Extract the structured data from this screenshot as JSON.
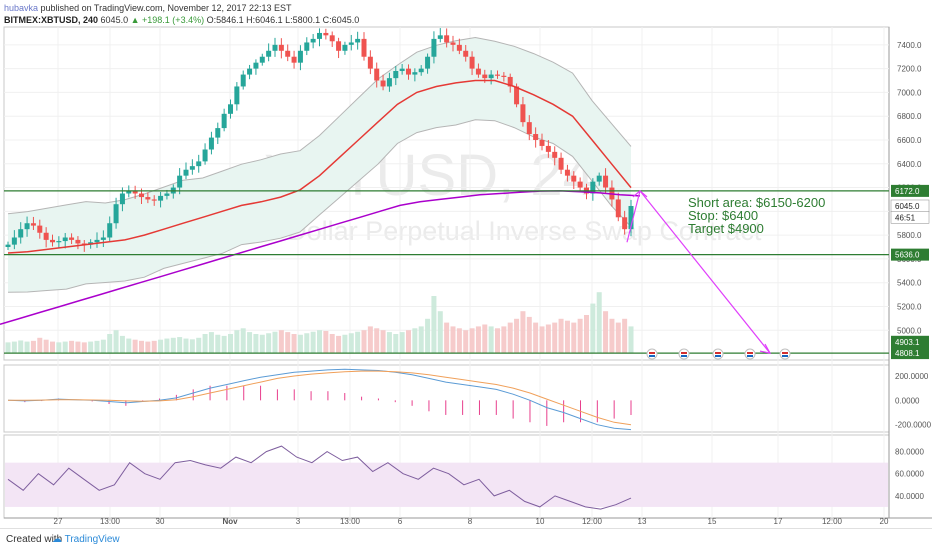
{
  "header": {
    "username": "hubavka",
    "published_text": "published on TradingView.com, November 12, 2017 22:13 EST",
    "symbol": "BITMEX:XBTUSD, 240",
    "last": "6045.0",
    "change": "+198.1 (+3.4%)",
    "ohlc": "O:5846.1 H:6046.1 L:5800.1 C:6045.0"
  },
  "watermark": {
    "symbol": "XBTUSD, 240",
    "description": "Bitcoin / US Dollar Perpetual Inverse Swap Contract"
  },
  "annotation": {
    "line1": "Short area: $6150-6200",
    "line2": "Stop: $6400",
    "line3": "Target $4900"
  },
  "footer": {
    "created_with": "Created with",
    "logo_text": "TradingView"
  },
  "colors": {
    "up": "#26a69a",
    "down": "#ef5350",
    "ema_short": "#e53935",
    "ema_long": "#aa00cc",
    "annotation": "#2e7d32",
    "hline": "#2e7d32",
    "arrow": "#e040fb"
  },
  "chart_data": [
    {
      "type": "candlestick",
      "title": "XBTUSD, 240",
      "ylim": [
        4750,
        7550
      ],
      "y_ticks": [
        5000,
        5200,
        5400,
        5600,
        5800,
        6000,
        6200,
        6400,
        6600,
        6800,
        7000,
        7200,
        7400
      ],
      "y_tick_labels": [
        "5000.0",
        "5200.0",
        "5400.0",
        "5600.0",
        "5800.0",
        "6000.0",
        "6200.0",
        "6400.0",
        "6600.0",
        "6800.0",
        "7000.0",
        "7200.0",
        "7400.0"
      ],
      "x_tick_labels": [
        "27",
        "13:00",
        "30",
        "Nov",
        "3",
        "13:00",
        "6",
        "8",
        "10",
        "12:00",
        "13",
        "15",
        "17",
        "12:00",
        "20"
      ],
      "close_path": [
        5720,
        5780,
        5850,
        5900,
        5880,
        5820,
        5760,
        5740,
        5750,
        5780,
        5760,
        5730,
        5720,
        5740,
        5760,
        5780,
        5900,
        6060,
        6150,
        6170,
        6150,
        6120,
        6100,
        6090,
        6130,
        6150,
        6200,
        6300,
        6350,
        6380,
        6420,
        6520,
        6620,
        6700,
        6820,
        6900,
        7050,
        7150,
        7200,
        7250,
        7300,
        7350,
        7400,
        7350,
        7300,
        7250,
        7350,
        7420,
        7450,
        7500,
        7480,
        7430,
        7350,
        7400,
        7420,
        7450,
        7300,
        7200,
        7100,
        7050,
        7120,
        7180,
        7200,
        7150,
        7170,
        7200,
        7300,
        7450,
        7480,
        7420,
        7400,
        7350,
        7300,
        7200,
        7150,
        7120,
        7150,
        7140,
        7130,
        7050,
        6900,
        6750,
        6650,
        6600,
        6550,
        6500,
        6450,
        6350,
        6300,
        6250,
        6200,
        6150,
        6250,
        6300,
        6200,
        6100,
        5950,
        5850,
        6045
      ],
      "volume_range": [
        0,
        2000
      ],
      "volume_path": [
        280,
        300,
        330,
        300,
        320,
        400,
        350,
        300,
        280,
        300,
        320,
        300,
        280,
        300,
        320,
        350,
        500,
        600,
        450,
        380,
        350,
        320,
        300,
        320,
        350,
        380,
        400,
        420,
        380,
        360,
        400,
        500,
        550,
        480,
        450,
        500,
        600,
        650,
        550,
        500,
        480,
        520,
        560,
        600,
        550,
        500,
        480,
        520,
        560,
        600,
        580,
        500,
        450,
        480,
        520,
        560,
        600,
        700,
        650,
        600,
        550,
        500,
        550,
        600,
        650,
        700,
        900,
        1500,
        1100,
        800,
        700,
        650,
        600,
        650,
        700,
        750,
        700,
        650,
        700,
        800,
        900,
        1100,
        950,
        800,
        700,
        750,
        800,
        900,
        850,
        800,
        900,
        1000,
        1300,
        1600,
        1100,
        900,
        800,
        900,
        700
      ],
      "horizontal_levels": [
        6172.0,
        5636.0,
        4808.1
      ],
      "price_labels": [
        "6172.0",
        "6045.0",
        "46:51",
        "5636.0",
        "4903.1",
        "4808.1"
      ],
      "arrow": {
        "from": [
          "13 (00:00)",
          6172
        ],
        "to": [
          "16 (12:00)",
          4808
        ]
      },
      "series": [
        {
          "values": [
            5650,
            5660,
            5680,
            5700,
            5720,
            5740,
            5760,
            5800,
            5850,
            5900,
            5950,
            6000,
            6050,
            6080,
            6120,
            6180,
            6300,
            6450,
            6600,
            6750,
            6900,
            7000,
            7050,
            7080,
            7100,
            7100,
            7050,
            6980,
            6900,
            6800,
            6600,
            6400,
            6200
          ]
        },
        {
          "values": [
            5050,
            5100,
            5150,
            5200,
            5250,
            5300,
            5350,
            5400,
            5450,
            5500,
            5550,
            5600,
            5650,
            5700,
            5750,
            5800,
            5850,
            5900,
            5950,
            6000,
            6050,
            6080,
            6100,
            6120,
            6140,
            6150,
            6160,
            6170,
            6172,
            6165,
            6155,
            6140,
            6130
          ]
        }
      ]
    },
    {
      "type": "line",
      "y_tick_labels": [
        "200.0000",
        "0.0000",
        "-200.0000"
      ],
      "ylim": [
        -260,
        290
      ],
      "series": [
        {
          "values": [
            0,
            -5,
            0,
            10,
            5,
            0,
            -10,
            -20,
            -10,
            0,
            20,
            60,
            100,
            130,
            160,
            190,
            210,
            230,
            240,
            250,
            255,
            250,
            245,
            230,
            210,
            180,
            150,
            130,
            110,
            90,
            50,
            0,
            -60,
            -100,
            -150,
            -200,
            -230,
            -240
          ]
        },
        {
          "values": [
            0,
            0,
            2,
            5,
            5,
            3,
            0,
            -5,
            -8,
            -5,
            5,
            30,
            60,
            90,
            120,
            150,
            180,
            200,
            215,
            225,
            235,
            240,
            240,
            235,
            225,
            210,
            190,
            170,
            150,
            130,
            100,
            60,
            10,
            -40,
            -90,
            -140,
            -180,
            -200
          ]
        }
      ]
    },
    {
      "type": "line",
      "y_tick_labels": [
        "80.0000",
        "60.0000",
        "40.0000"
      ],
      "ylim": [
        20,
        95
      ],
      "band": [
        30,
        70
      ],
      "series": [
        {
          "values": [
            55,
            45,
            60,
            50,
            65,
            55,
            45,
            50,
            70,
            60,
            55,
            70,
            72,
            68,
            65,
            75,
            70,
            80,
            85,
            75,
            70,
            80,
            72,
            75,
            62,
            70,
            60,
            55,
            65,
            60,
            50,
            55,
            40,
            45,
            35,
            30,
            40,
            35,
            30,
            28,
            32,
            38
          ]
        }
      ]
    }
  ]
}
